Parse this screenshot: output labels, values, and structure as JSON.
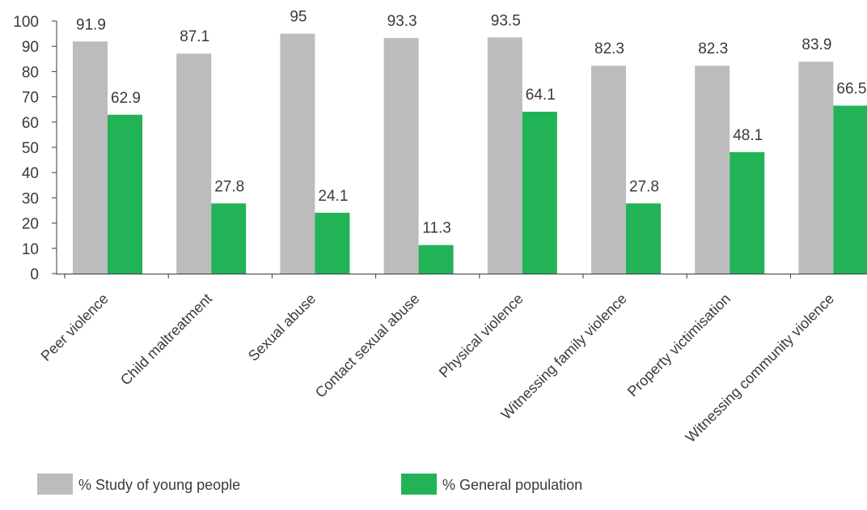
{
  "chart_data": {
    "type": "bar",
    "title": "",
    "xlabel": "",
    "ylabel": "",
    "ylim": [
      0,
      100
    ],
    "yticks": [
      0,
      10,
      20,
      30,
      40,
      50,
      60,
      70,
      80,
      90,
      100
    ],
    "grid": false,
    "legend_position": "bottom-left",
    "categories": [
      "Peer violence",
      "Child maltreatment",
      "Sexual abuse",
      "Contact sexual abuse",
      "Physical violence",
      "Witnessing family violence",
      "Property victimisation",
      "Witnessing community violence"
    ],
    "series": [
      {
        "name": "% Study of young people",
        "color": "#bcbcbe",
        "values": [
          91.9,
          87.1,
          95,
          93.3,
          93.5,
          82.3,
          82.3,
          83.9
        ],
        "labels": [
          "91.9",
          "87.1",
          "95",
          "93.3",
          "93.5",
          "82.3",
          "82.3",
          "83.9"
        ]
      },
      {
        "name": "% General population",
        "color": "#22b357",
        "values": [
          62.9,
          27.8,
          24.1,
          11.3,
          64.1,
          27.8,
          48.1,
          66.5
        ],
        "labels": [
          "62.9",
          "27.8",
          "24.1",
          "11.3",
          "64.1",
          "27.8",
          "48.1",
          "66.5"
        ]
      }
    ]
  }
}
